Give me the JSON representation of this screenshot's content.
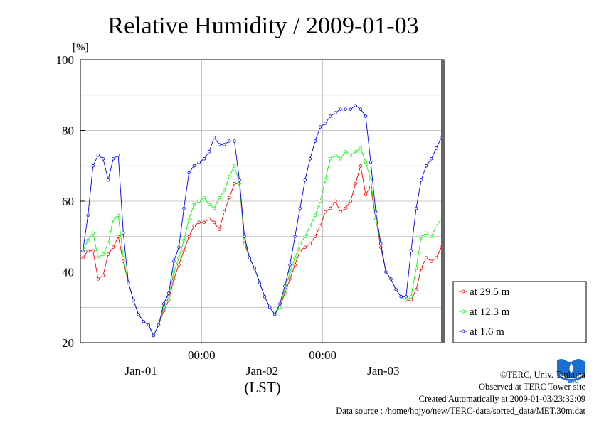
{
  "chart_data": {
    "type": "line",
    "title": "Relative Humidity / 2009-01-03",
    "ylabel": "[%]",
    "xlabel": "(LST)",
    "ylim": [
      20,
      100
    ],
    "yticks": [
      20,
      40,
      60,
      80,
      100
    ],
    "x_range_hours": [
      0,
      72
    ],
    "x_tick_labels": [
      {
        "label": "00:00",
        "hour": 24
      },
      {
        "label": "00:00",
        "hour": 48
      }
    ],
    "x_day_labels": [
      {
        "label": "Jan-01",
        "hour": 12
      },
      {
        "label": "Jan-02",
        "hour": 36
      },
      {
        "label": "Jan-03",
        "hour": 60
      }
    ],
    "grid": true,
    "legend_position": "right",
    "series": [
      {
        "name": "at 29.5 m",
        "color": "#ff0000",
        "points": [
          [
            0,
            44
          ],
          [
            1,
            46
          ],
          [
            2,
            46
          ],
          [
            3,
            38
          ],
          [
            4,
            39
          ],
          [
            5,
            45
          ],
          [
            6,
            47
          ],
          [
            7,
            50
          ],
          [
            8,
            43
          ],
          [
            9,
            37
          ],
          [
            10,
            32
          ],
          [
            11,
            28
          ],
          [
            12,
            26
          ],
          [
            13,
            25
          ],
          [
            14,
            22
          ],
          [
            15,
            25
          ],
          [
            16,
            29
          ],
          [
            17,
            32
          ],
          [
            18,
            38
          ],
          [
            19,
            42
          ],
          [
            20,
            46
          ],
          [
            21,
            50
          ],
          [
            22,
            53
          ],
          [
            23,
            54
          ],
          [
            24,
            54
          ],
          [
            25,
            55
          ],
          [
            26,
            54
          ],
          [
            27,
            52
          ],
          [
            28,
            57
          ],
          [
            29,
            61
          ],
          [
            30,
            65
          ],
          [
            31,
            65
          ],
          [
            32,
            48
          ],
          [
            33,
            44
          ],
          [
            34,
            41
          ],
          [
            35,
            37
          ],
          [
            36,
            33
          ],
          [
            37,
            30
          ],
          [
            38,
            28
          ],
          [
            39,
            30
          ],
          [
            40,
            34
          ],
          [
            41,
            38
          ],
          [
            42,
            42
          ],
          [
            43,
            46
          ],
          [
            44,
            47
          ],
          [
            45,
            48
          ],
          [
            46,
            50
          ],
          [
            47,
            53
          ],
          [
            48,
            57
          ],
          [
            49,
            58
          ],
          [
            50,
            60
          ],
          [
            51,
            57
          ],
          [
            52,
            58
          ],
          [
            53,
            60
          ],
          [
            54,
            65
          ],
          [
            55,
            70
          ],
          [
            56,
            62
          ],
          [
            57,
            64
          ],
          [
            58,
            55
          ],
          [
            59,
            47
          ],
          [
            60,
            40
          ],
          [
            61,
            38
          ],
          [
            62,
            35
          ],
          [
            63,
            33
          ],
          [
            64,
            32
          ],
          [
            65,
            32
          ],
          [
            66,
            35
          ],
          [
            67,
            41
          ],
          [
            68,
            44
          ],
          [
            69,
            43
          ],
          [
            70,
            44
          ],
          [
            71,
            47
          ]
        ]
      },
      {
        "name": "at 12.3 m",
        "color": "#00ff00",
        "points": [
          [
            0,
            46
          ],
          [
            1,
            49
          ],
          [
            2,
            51
          ],
          [
            3,
            44
          ],
          [
            4,
            45
          ],
          [
            5,
            48
          ],
          [
            6,
            55
          ],
          [
            7,
            56
          ],
          [
            8,
            44
          ],
          [
            9,
            37
          ],
          [
            10,
            32
          ],
          [
            11,
            28
          ],
          [
            12,
            26
          ],
          [
            13,
            25
          ],
          [
            14,
            22
          ],
          [
            15,
            25
          ],
          [
            16,
            30
          ],
          [
            17,
            33
          ],
          [
            18,
            40
          ],
          [
            19,
            44
          ],
          [
            20,
            49
          ],
          [
            21,
            55
          ],
          [
            22,
            59
          ],
          [
            23,
            60
          ],
          [
            24,
            61
          ],
          [
            25,
            59
          ],
          [
            26,
            58
          ],
          [
            27,
            61
          ],
          [
            28,
            63
          ],
          [
            29,
            67
          ],
          [
            30,
            70
          ],
          [
            31,
            65
          ],
          [
            32,
            49
          ],
          [
            33,
            44
          ],
          [
            34,
            41
          ],
          [
            35,
            37
          ],
          [
            36,
            33
          ],
          [
            37,
            30
          ],
          [
            38,
            28
          ],
          [
            39,
            30
          ],
          [
            40,
            35
          ],
          [
            41,
            40
          ],
          [
            42,
            44
          ],
          [
            43,
            48
          ],
          [
            44,
            50
          ],
          [
            45,
            53
          ],
          [
            46,
            56
          ],
          [
            47,
            60
          ],
          [
            48,
            66
          ],
          [
            49,
            72
          ],
          [
            50,
            73
          ],
          [
            51,
            72
          ],
          [
            52,
            74
          ],
          [
            53,
            73
          ],
          [
            54,
            74
          ],
          [
            55,
            75
          ],
          [
            56,
            71
          ],
          [
            57,
            66
          ],
          [
            58,
            55
          ],
          [
            59,
            48
          ],
          [
            60,
            40
          ],
          [
            61,
            38
          ],
          [
            62,
            35
          ],
          [
            63,
            33
          ],
          [
            64,
            32
          ],
          [
            65,
            33
          ],
          [
            66,
            41
          ],
          [
            67,
            50
          ],
          [
            68,
            51
          ],
          [
            69,
            50
          ],
          [
            70,
            53
          ],
          [
            71,
            55
          ]
        ]
      },
      {
        "name": "at 1.6 m",
        "color": "#0000ff",
        "points": [
          [
            0,
            46
          ],
          [
            1,
            56
          ],
          [
            2,
            70
          ],
          [
            3,
            73
          ],
          [
            4,
            72
          ],
          [
            5,
            66
          ],
          [
            6,
            72
          ],
          [
            7,
            73
          ],
          [
            8,
            51
          ],
          [
            9,
            37
          ],
          [
            10,
            32
          ],
          [
            11,
            28
          ],
          [
            12,
            26
          ],
          [
            13,
            25
          ],
          [
            14,
            22
          ],
          [
            15,
            25
          ],
          [
            16,
            31
          ],
          [
            17,
            34
          ],
          [
            18,
            43
          ],
          [
            19,
            47
          ],
          [
            20,
            58
          ],
          [
            21,
            68
          ],
          [
            22,
            70
          ],
          [
            23,
            71
          ],
          [
            24,
            72
          ],
          [
            25,
            74
          ],
          [
            26,
            78
          ],
          [
            27,
            76
          ],
          [
            28,
            76
          ],
          [
            29,
            77
          ],
          [
            30,
            77
          ],
          [
            31,
            66
          ],
          [
            32,
            50
          ],
          [
            33,
            44
          ],
          [
            34,
            41
          ],
          [
            35,
            37
          ],
          [
            36,
            33
          ],
          [
            37,
            30
          ],
          [
            38,
            28
          ],
          [
            39,
            31
          ],
          [
            40,
            36
          ],
          [
            41,
            42
          ],
          [
            42,
            50
          ],
          [
            43,
            58
          ],
          [
            44,
            66
          ],
          [
            45,
            72
          ],
          [
            46,
            77
          ],
          [
            47,
            81
          ],
          [
            48,
            82
          ],
          [
            49,
            84
          ],
          [
            50,
            85
          ],
          [
            51,
            86
          ],
          [
            52,
            86
          ],
          [
            53,
            86
          ],
          [
            54,
            87
          ],
          [
            55,
            86
          ],
          [
            56,
            84
          ],
          [
            57,
            71
          ],
          [
            58,
            57
          ],
          [
            59,
            48
          ],
          [
            60,
            40
          ],
          [
            61,
            38
          ],
          [
            62,
            35
          ],
          [
            63,
            33
          ],
          [
            64,
            33
          ],
          [
            65,
            46
          ],
          [
            66,
            58
          ],
          [
            67,
            66
          ],
          [
            68,
            70
          ],
          [
            69,
            72
          ],
          [
            70,
            75
          ],
          [
            71,
            78
          ]
        ]
      }
    ]
  },
  "footer": {
    "copyright": "©TERC, Univ. Tsukuba",
    "observed": "Observed at TERC Tower site",
    "created": "Created Automatically at 2009-01-03/23:32:09",
    "source": "Data source : /home/hojyo/new/TERC-data/sorted_data/MET.30m.dat"
  },
  "logo": {
    "name": "terc-logo",
    "text": "TERC",
    "color": "#1a6fd0"
  }
}
